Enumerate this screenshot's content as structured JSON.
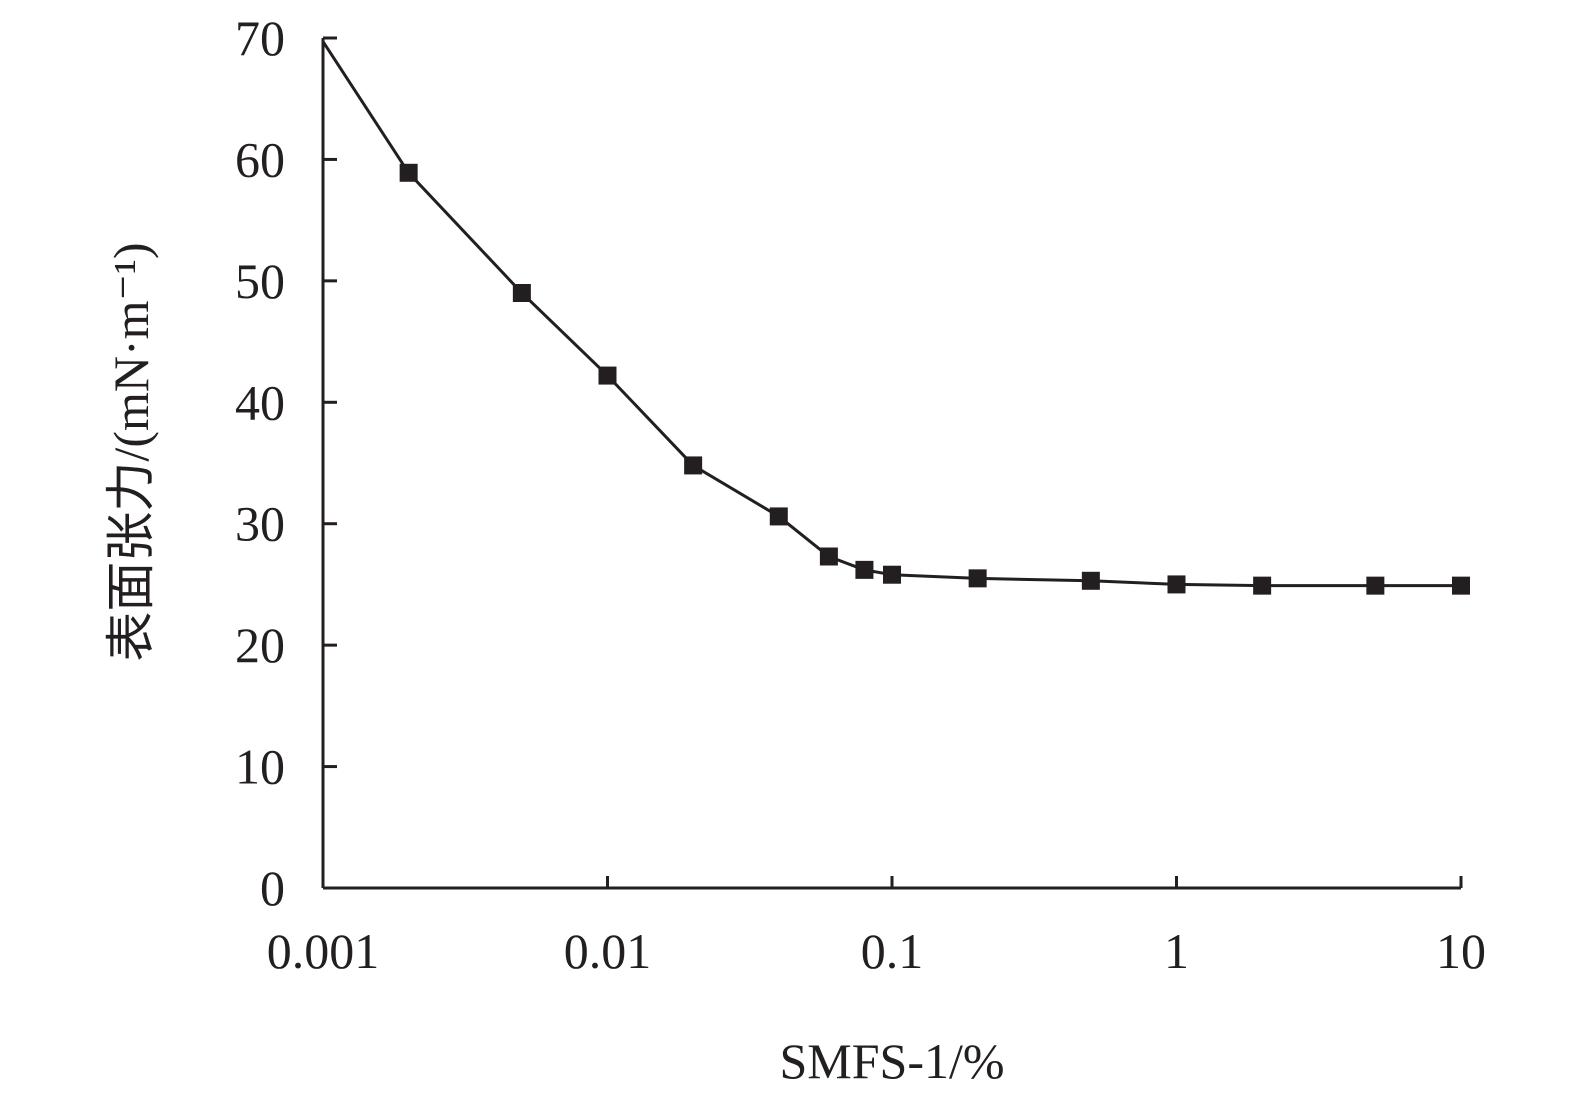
{
  "chart_data": {
    "type": "line",
    "xscale": "log",
    "xlim": [
      0.001,
      10
    ],
    "ylim": [
      0,
      70
    ],
    "xticks": [
      0.001,
      0.01,
      0.1,
      1,
      10
    ],
    "xtick_labels": [
      "0.001",
      "0.01",
      "0.1",
      "1",
      "10"
    ],
    "yticks": [
      0,
      10,
      20,
      30,
      40,
      50,
      60,
      70
    ],
    "ytick_labels": [
      "0",
      "10",
      "20",
      "30",
      "40",
      "50",
      "60",
      "70"
    ],
    "xlabel": "SMFS-1/%",
    "ylabel": "表面张力/(mN·m⁻¹)",
    "grid": false,
    "marker": "square",
    "color": "#231f20",
    "x": [
      0.001,
      0.002,
      0.005,
      0.01,
      0.02,
      0.04,
      0.06,
      0.08,
      0.1,
      0.2,
      0.5,
      1,
      2,
      5,
      10
    ],
    "y": [
      69.7,
      58.9,
      49.0,
      42.2,
      34.8,
      30.6,
      27.3,
      26.2,
      25.8,
      25.5,
      25.3,
      25.0,
      24.9,
      24.9,
      24.9
    ]
  }
}
